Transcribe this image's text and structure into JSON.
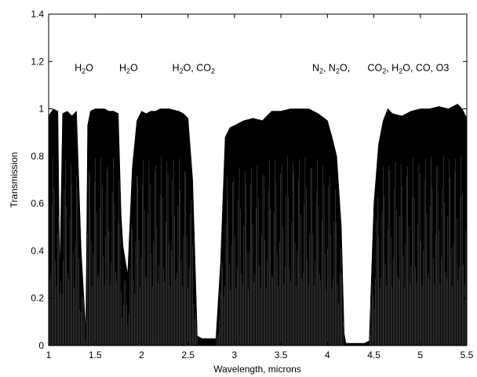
{
  "chart_data": {
    "type": "area",
    "title": "",
    "xlabel": "Wavelength, microns",
    "ylabel": "Transmission",
    "xlim": [
      1,
      5.5
    ],
    "ylim": [
      0,
      1.4
    ],
    "x_ticks": [
      1,
      1.5,
      2,
      2.5,
      3,
      3.5,
      4,
      4.5,
      5,
      5.5
    ],
    "x_tick_labels": [
      "1",
      "1.5",
      "2",
      "2.5",
      "3",
      "3.5",
      "4",
      "4.5",
      "5",
      "5.5"
    ],
    "y_ticks": [
      0,
      0.2,
      0.4,
      0.6,
      0.8,
      1,
      1.2,
      1.4
    ],
    "y_tick_labels": [
      "0",
      "0.2",
      "0.4",
      "0.6",
      "0.8",
      "1",
      "1.2",
      "1.4"
    ],
    "grid": false,
    "legend": "none",
    "color": "#000000",
    "annotations": [
      {
        "x": 1.38,
        "y": 1.16,
        "parts": [
          {
            "t": "H"
          },
          {
            "t": "2",
            "sub": true
          },
          {
            "t": "O"
          }
        ]
      },
      {
        "x": 1.86,
        "y": 1.16,
        "parts": [
          {
            "t": "H"
          },
          {
            "t": "2",
            "sub": true
          },
          {
            "t": "O"
          }
        ]
      },
      {
        "x": 2.56,
        "y": 1.16,
        "parts": [
          {
            "t": "H"
          },
          {
            "t": "2",
            "sub": true
          },
          {
            "t": "O, CO"
          },
          {
            "t": "2",
            "sub": true
          }
        ]
      },
      {
        "x": 4.04,
        "y": 1.16,
        "parts": [
          {
            "t": "N"
          },
          {
            "t": "2",
            "sub": true
          },
          {
            "t": ", N"
          },
          {
            "t": "2",
            "sub": true
          },
          {
            "t": "O,"
          }
        ]
      },
      {
        "x": 4.87,
        "y": 1.16,
        "parts": [
          {
            "t": "CO"
          },
          {
            "t": "2",
            "sub": true
          },
          {
            "t": ", H"
          },
          {
            "t": "2",
            "sub": true
          },
          {
            "t": "O, CO, O3"
          }
        ]
      }
    ],
    "series": [
      {
        "x": [
          1.0,
          1.05,
          1.1,
          1.12,
          1.15,
          1.2,
          1.25,
          1.3,
          1.35,
          1.4,
          1.42,
          1.45,
          1.5,
          1.55,
          1.6,
          1.65,
          1.7,
          1.75,
          1.78,
          1.8,
          1.85,
          1.9,
          1.95,
          2.0,
          2.05,
          2.1,
          2.15,
          2.2,
          2.3,
          2.4,
          2.45,
          2.5,
          2.55,
          2.6,
          2.65,
          2.7,
          2.75,
          2.8,
          2.85,
          2.9,
          2.95,
          3.0,
          3.1,
          3.2,
          3.3,
          3.4,
          3.5,
          3.6,
          3.7,
          3.8,
          3.9,
          4.0,
          4.05,
          4.1,
          4.15,
          4.18,
          4.2,
          4.3,
          4.4,
          4.45,
          4.5,
          4.55,
          4.6,
          4.65,
          4.7,
          4.8,
          4.9,
          5.0,
          5.1,
          5.2,
          5.3,
          5.4,
          5.45,
          5.5
        ],
        "values": [
          0.97,
          1.0,
          0.99,
          0.3,
          0.98,
          0.99,
          0.97,
          0.99,
          0.4,
          0.06,
          0.93,
          0.99,
          1.0,
          1.0,
          1.0,
          0.99,
          0.99,
          0.98,
          0.55,
          0.42,
          0.3,
          0.75,
          0.95,
          0.99,
          0.98,
          0.99,
          0.99,
          1.0,
          1.0,
          0.99,
          0.98,
          0.96,
          0.7,
          0.04,
          0.03,
          0.03,
          0.03,
          0.03,
          0.35,
          0.88,
          0.92,
          0.93,
          0.95,
          0.96,
          0.95,
          0.99,
          0.99,
          1.0,
          1.0,
          1.0,
          0.98,
          0.95,
          0.88,
          0.8,
          0.5,
          0.05,
          0.01,
          0.01,
          0.01,
          0.02,
          0.6,
          0.85,
          0.95,
          1.0,
          0.98,
          0.97,
          0.99,
          1.0,
          1.0,
          1.01,
          1.0,
          1.02,
          1.0,
          0.96
        ]
      }
    ]
  }
}
